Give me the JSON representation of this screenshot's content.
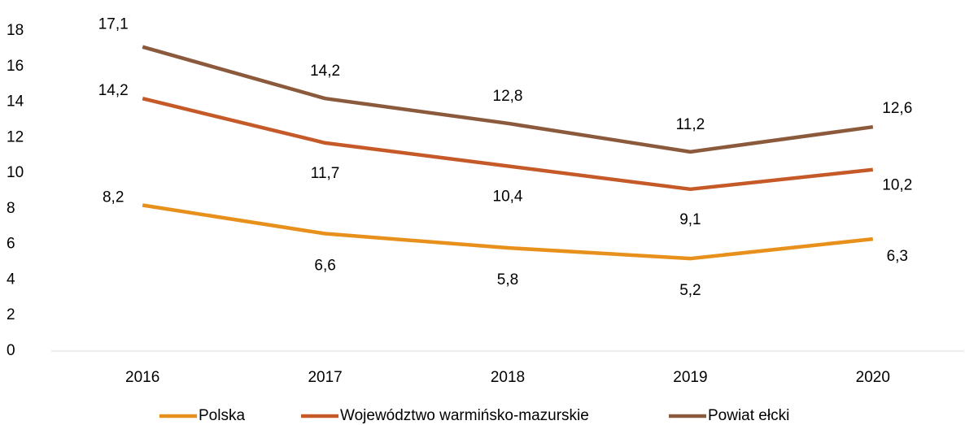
{
  "chart_data": {
    "type": "line",
    "categories": [
      "2016",
      "2017",
      "2018",
      "2019",
      "2020"
    ],
    "series": [
      {
        "name": "Polska",
        "color": "#e8901c",
        "values": [
          8.2,
          6.6,
          5.8,
          5.2,
          6.3
        ],
        "value_labels": [
          "8,2",
          "6,6",
          "5,8",
          "5,2",
          "6,3"
        ]
      },
      {
        "name": "Województwo warmińsko-mazurskie",
        "color": "#c55a28",
        "values": [
          14.2,
          11.7,
          10.4,
          9.1,
          10.2
        ],
        "value_labels": [
          "14,2",
          "11,7",
          "10,4",
          "9,1",
          "10,2"
        ]
      },
      {
        "name": "Powiat ełcki",
        "color": "#8b5a3c",
        "values": [
          17.1,
          14.2,
          12.8,
          11.2,
          12.6
        ],
        "value_labels": [
          "17,1",
          "14,2",
          "12,8",
          "11,2",
          "12,6"
        ]
      }
    ],
    "ylim": [
      0,
      18
    ],
    "yticks": [
      0,
      2,
      4,
      6,
      8,
      10,
      12,
      14,
      16,
      18
    ],
    "grid": false,
    "legend": "bottom"
  }
}
